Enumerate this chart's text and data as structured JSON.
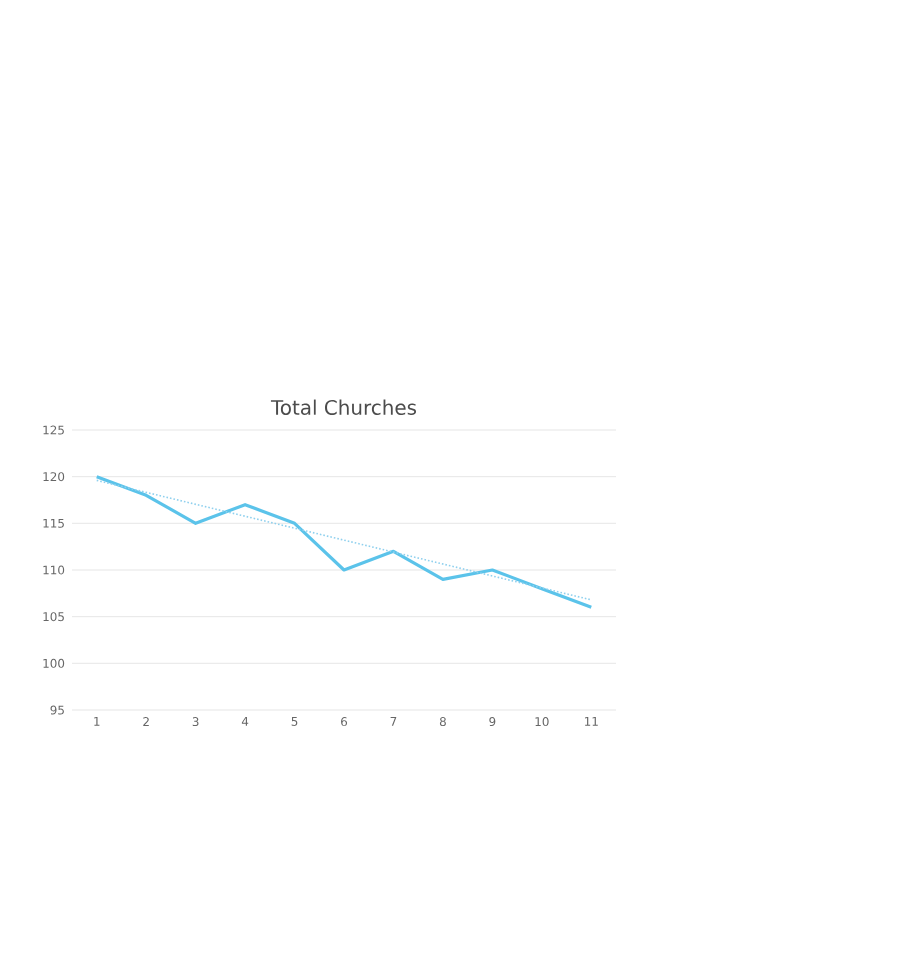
{
  "chart_data": {
    "type": "line",
    "title": "Total Churches",
    "x": [
      1,
      2,
      3,
      4,
      5,
      6,
      7,
      8,
      9,
      10,
      11
    ],
    "series": [
      {
        "color": "#5bc3ea",
        "values": [
          120,
          118,
          115,
          117,
          115,
          110,
          112,
          109,
          110,
          108,
          106
        ]
      },
      {
        "type": "line",
        "line_style": "dotted",
        "color": "#8fd0ee",
        "x": [
          1,
          11
        ],
        "values": [
          119.6,
          106.8
        ]
      }
    ],
    "xlim": [
      0.5,
      11.5
    ],
    "xticks": [
      1,
      2,
      3,
      4,
      5,
      6,
      7,
      8,
      9,
      10,
      11
    ],
    "ylim": [
      95,
      125
    ],
    "yticks": [
      95,
      100,
      105,
      110,
      115,
      120,
      125
    ],
    "grid": "y",
    "marker": "none"
  }
}
